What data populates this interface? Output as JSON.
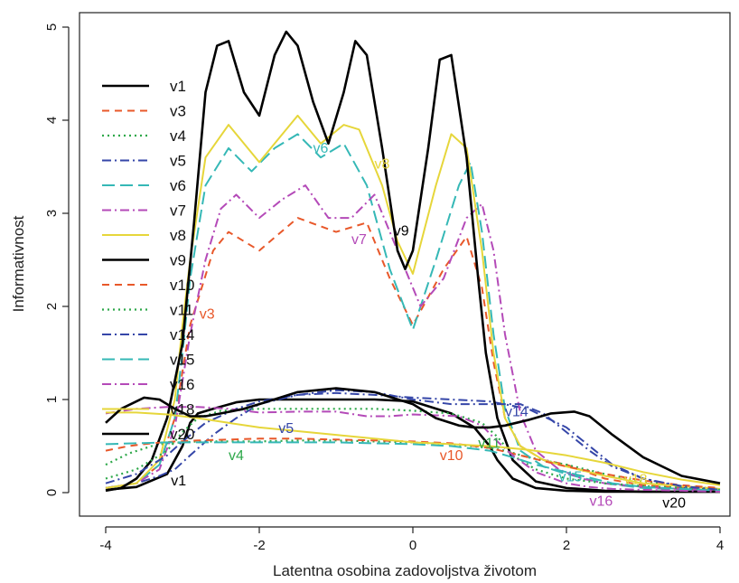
{
  "chart_data": {
    "type": "line",
    "xlabel": "Latentna osobina zadovoljstva životom",
    "ylabel": "Informativnost",
    "xlim": [
      -4,
      4
    ],
    "ylim": [
      0,
      5
    ],
    "x_ticks": [
      "-4",
      "-2",
      "0",
      "2",
      "4"
    ],
    "y_ticks": [
      "0",
      "1",
      "2",
      "3",
      "4",
      "5"
    ],
    "legend_position": "top-left",
    "series": [
      {
        "name": "v1",
        "color": "#000000",
        "dash": "solid",
        "width": 2.6,
        "x": [
          -4,
          -3.6,
          -3.2,
          -3.0,
          -2.9,
          -2.8,
          -2.6,
          -2.3,
          -2.0,
          -1.5,
          -1.0,
          -0.5,
          0.0,
          0.5,
          0.8,
          1.0,
          1.1,
          1.3,
          1.6,
          2.0,
          2.5,
          3.0,
          3.5,
          4.0
        ],
        "y": [
          0.03,
          0.06,
          0.2,
          0.5,
          0.75,
          0.85,
          0.9,
          0.97,
          1.0,
          1.0,
          1.0,
          1.0,
          0.98,
          0.85,
          0.7,
          0.5,
          0.35,
          0.15,
          0.05,
          0.02,
          0.01,
          0.01,
          0.01,
          0.01
        ]
      },
      {
        "name": "v3",
        "color": "#e8582a",
        "dash": "8,6",
        "width": 2,
        "x": [
          -4,
          -3.6,
          -3.3,
          -3.1,
          -3.0,
          -2.9,
          -2.6,
          -2.4,
          -2.0,
          -1.5,
          -1.0,
          -0.6,
          -0.3,
          0.0,
          0.4,
          0.7,
          0.9,
          1.05,
          1.2,
          1.4,
          1.7,
          2.0,
          2.5,
          3.0,
          4.0
        ],
        "y": [
          0.05,
          0.1,
          0.3,
          0.8,
          1.3,
          1.8,
          2.6,
          2.8,
          2.6,
          2.95,
          2.8,
          2.9,
          2.3,
          1.8,
          2.4,
          2.75,
          2.2,
          1.4,
          0.8,
          0.5,
          0.35,
          0.3,
          0.15,
          0.08,
          0.02
        ]
      },
      {
        "name": "v4",
        "color": "#2ea84a",
        "dash": "2,4",
        "width": 2.2,
        "x": [
          -4,
          -3.7,
          -3.4,
          -3.2,
          -2.8,
          -2.4,
          -2.0,
          -1.5,
          -1.0,
          -0.5,
          0.0,
          0.5,
          1.0,
          1.2,
          1.5,
          2.0,
          2.5,
          3.0,
          3.5,
          4.0
        ],
        "y": [
          0.3,
          0.42,
          0.5,
          0.53,
          0.55,
          0.55,
          0.55,
          0.56,
          0.56,
          0.55,
          0.54,
          0.52,
          0.48,
          0.45,
          0.38,
          0.3,
          0.2,
          0.12,
          0.07,
          0.04
        ]
      },
      {
        "name": "v5",
        "color": "#3546a8",
        "dash": "10,4,2,4",
        "width": 2,
        "x": [
          -4,
          -3.6,
          -3.3,
          -3.1,
          -2.9,
          -2.6,
          -2.3,
          -2.0,
          -1.5,
          -1.0,
          -0.5,
          0.0,
          0.5,
          1.0,
          1.5,
          2.0,
          2.3,
          2.6,
          3.0,
          3.5,
          4.0
        ],
        "y": [
          0.05,
          0.1,
          0.18,
          0.25,
          0.4,
          0.62,
          0.8,
          0.95,
          1.05,
          1.07,
          1.05,
          1.02,
          1.0,
          0.98,
          0.9,
          0.7,
          0.5,
          0.3,
          0.15,
          0.06,
          0.03
        ]
      },
      {
        "name": "v6",
        "color": "#35b8b6",
        "dash": "14,6",
        "width": 2,
        "x": [
          -4,
          -3.6,
          -3.3,
          -3.1,
          -3.0,
          -2.9,
          -2.7,
          -2.4,
          -2.1,
          -1.8,
          -1.5,
          -1.2,
          -0.9,
          -0.6,
          -0.3,
          0.0,
          0.3,
          0.6,
          0.75,
          0.9,
          1.05,
          1.2,
          1.4,
          1.7,
          2.0,
          2.5,
          3.0,
          4.0
        ],
        "y": [
          0.05,
          0.1,
          0.3,
          0.8,
          1.5,
          2.3,
          3.3,
          3.7,
          3.45,
          3.7,
          3.85,
          3.6,
          3.75,
          3.3,
          2.4,
          1.75,
          2.5,
          3.3,
          3.55,
          2.8,
          1.7,
          0.9,
          0.45,
          0.28,
          0.2,
          0.1,
          0.05,
          0.02
        ]
      },
      {
        "name": "v7",
        "color": "#b44ab8",
        "dash": "10,4,2,4",
        "width": 2,
        "x": [
          -4,
          -3.6,
          -3.3,
          -3.1,
          -3.0,
          -2.9,
          -2.7,
          -2.5,
          -2.3,
          -2.0,
          -1.7,
          -1.4,
          -1.1,
          -0.8,
          -0.5,
          -0.2,
          0.1,
          0.4,
          0.7,
          0.9,
          1.05,
          1.2,
          1.4,
          1.6,
          1.9,
          2.2,
          2.5,
          3.0,
          3.5,
          4.0
        ],
        "y": [
          0.05,
          0.1,
          0.25,
          0.7,
          1.2,
          1.7,
          2.5,
          3.05,
          3.2,
          2.95,
          3.15,
          3.3,
          2.95,
          2.95,
          3.2,
          2.6,
          2.0,
          2.3,
          2.95,
          3.1,
          2.6,
          1.7,
          0.85,
          0.45,
          0.25,
          0.15,
          0.1,
          0.06,
          0.04,
          0.02
        ]
      },
      {
        "name": "v8",
        "color": "#e6d63a",
        "dash": "solid",
        "width": 2,
        "x": [
          -4,
          -3.6,
          -3.3,
          -3.1,
          -3.0,
          -2.9,
          -2.7,
          -2.4,
          -2.0,
          -1.8,
          -1.5,
          -1.2,
          -0.9,
          -0.7,
          -0.4,
          -0.2,
          0.0,
          0.3,
          0.5,
          0.7,
          0.9,
          1.05,
          1.2,
          1.4,
          1.7,
          2.0,
          2.5,
          3.0,
          4.0
        ],
        "y": [
          0.05,
          0.1,
          0.35,
          1.0,
          1.8,
          2.5,
          3.6,
          3.95,
          3.55,
          3.75,
          4.05,
          3.75,
          3.95,
          3.9,
          3.3,
          2.7,
          2.35,
          3.3,
          3.85,
          3.7,
          2.6,
          1.5,
          0.8,
          0.5,
          0.35,
          0.28,
          0.18,
          0.1,
          0.04
        ]
      },
      {
        "name": "v9",
        "color": "#000000",
        "dash": "solid",
        "width": 2.6,
        "x": [
          -4,
          -3.8,
          -3.6,
          -3.4,
          -3.2,
          -3.0,
          -2.85,
          -2.7,
          -2.55,
          -2.4,
          -2.2,
          -2.0,
          -1.8,
          -1.65,
          -1.5,
          -1.3,
          -1.1,
          -0.9,
          -0.75,
          -0.6,
          -0.4,
          -0.2,
          -0.1,
          0.0,
          0.2,
          0.35,
          0.5,
          0.7,
          0.85,
          0.95,
          1.1,
          1.3,
          1.6,
          2.0,
          2.5,
          3.0,
          4.0
        ],
        "y": [
          0.02,
          0.05,
          0.15,
          0.35,
          0.8,
          1.6,
          2.9,
          4.3,
          4.8,
          4.85,
          4.3,
          4.05,
          4.7,
          4.95,
          4.8,
          4.2,
          3.75,
          4.3,
          4.85,
          4.7,
          3.7,
          2.6,
          2.4,
          2.6,
          3.7,
          4.65,
          4.7,
          3.6,
          2.3,
          1.5,
          0.8,
          0.35,
          0.12,
          0.05,
          0.02,
          0.01,
          0.01
        ]
      },
      {
        "name": "v10",
        "color": "#e8582a",
        "dash": "8,6",
        "width": 2,
        "x": [
          -4,
          -3.7,
          -3.4,
          -3.1,
          -2.8,
          -2.4,
          -2.0,
          -1.5,
          -1.0,
          -0.5,
          0.0,
          0.5,
          1.0,
          1.2,
          1.5,
          2.0,
          2.5,
          3.0,
          3.5,
          4.0
        ],
        "y": [
          0.45,
          0.5,
          0.53,
          0.55,
          0.56,
          0.57,
          0.58,
          0.58,
          0.57,
          0.56,
          0.55,
          0.53,
          0.48,
          0.44,
          0.38,
          0.28,
          0.2,
          0.13,
          0.08,
          0.05
        ]
      },
      {
        "name": "v11",
        "color": "#2ea84a",
        "dash": "2,4",
        "width": 2.2,
        "x": [
          -4,
          -3.6,
          -3.2,
          -3.0,
          -2.8,
          -2.5,
          -2.0,
          -1.5,
          -1.0,
          -0.5,
          0.0,
          0.5,
          0.9,
          1.1,
          1.3,
          1.6,
          2.0,
          2.5,
          3.0,
          3.5,
          4.0
        ],
        "y": [
          0.15,
          0.25,
          0.45,
          0.65,
          0.8,
          0.88,
          0.9,
          0.9,
          0.9,
          0.9,
          0.88,
          0.85,
          0.75,
          0.6,
          0.4,
          0.25,
          0.15,
          0.1,
          0.07,
          0.05,
          0.03
        ]
      },
      {
        "name": "v14",
        "color": "#3546a8",
        "dash": "10,4,2,4",
        "width": 2,
        "x": [
          -4,
          -3.6,
          -3.2,
          -3.0,
          -2.7,
          -2.3,
          -2.0,
          -1.5,
          -1.0,
          -0.5,
          0.0,
          0.5,
          1.0,
          1.4,
          1.7,
          2.0,
          2.3,
          2.6,
          3.0,
          3.5,
          4.0
        ],
        "y": [
          0.1,
          0.2,
          0.4,
          0.55,
          0.75,
          0.9,
          0.98,
          1.05,
          1.1,
          1.08,
          1.0,
          0.95,
          0.95,
          0.95,
          0.85,
          0.65,
          0.45,
          0.28,
          0.15,
          0.07,
          0.03
        ]
      },
      {
        "name": "v15",
        "color": "#35b8b6",
        "dash": "14,6",
        "width": 2,
        "x": [
          -4,
          -3.6,
          -3.2,
          -2.8,
          -2.4,
          -2.0,
          -1.5,
          -1.0,
          -0.5,
          0.0,
          0.5,
          1.0,
          1.3,
          1.6,
          2.0,
          2.3,
          2.6,
          3.0,
          3.5,
          4.0
        ],
        "y": [
          0.52,
          0.53,
          0.54,
          0.54,
          0.54,
          0.54,
          0.54,
          0.54,
          0.53,
          0.52,
          0.5,
          0.45,
          0.38,
          0.3,
          0.22,
          0.16,
          0.1,
          0.06,
          0.04,
          0.02
        ]
      },
      {
        "name": "v16",
        "color": "#b44ab8",
        "dash": "10,4,2,4",
        "width": 2,
        "x": [
          -4,
          -3.6,
          -3.2,
          -2.8,
          -2.4,
          -2.0,
          -1.5,
          -1.0,
          -0.6,
          -0.3,
          0.0,
          0.3,
          0.6,
          0.9,
          1.1,
          1.3,
          1.6,
          2.0,
          2.3,
          2.6,
          3.0,
          3.5,
          4.0
        ],
        "y": [
          0.85,
          0.9,
          0.92,
          0.92,
          0.9,
          0.86,
          0.87,
          0.87,
          0.82,
          0.82,
          0.84,
          0.83,
          0.82,
          0.72,
          0.55,
          0.4,
          0.22,
          0.1,
          0.06,
          0.04,
          0.03,
          0.02,
          0.01
        ]
      },
      {
        "name": "v18",
        "color": "#e6d63a",
        "dash": "solid",
        "width": 2,
        "x": [
          -4,
          -3.6,
          -3.2,
          -2.8,
          -2.4,
          -2.0,
          -1.5,
          -1.0,
          -0.5,
          0.0,
          0.5,
          1.0,
          1.5,
          2.0,
          2.5,
          3.0,
          3.5,
          4.0
        ],
        "y": [
          0.86,
          0.86,
          0.84,
          0.8,
          0.75,
          0.7,
          0.66,
          0.62,
          0.58,
          0.54,
          0.52,
          0.5,
          0.46,
          0.4,
          0.32,
          0.22,
          0.14,
          0.08
        ]
      },
      {
        "name": "v20",
        "color": "#000000",
        "dash": "solid",
        "width": 2.6,
        "x": [
          -4,
          -3.8,
          -3.5,
          -3.3,
          -3.1,
          -2.9,
          -2.7,
          -2.5,
          -2.2,
          -2.0,
          -1.5,
          -1.0,
          -0.5,
          0.0,
          0.3,
          0.6,
          0.8,
          1.0,
          1.2,
          1.5,
          1.8,
          2.1,
          2.3,
          2.6,
          3.0,
          3.5,
          4.0
        ],
        "y": [
          0.75,
          0.9,
          1.02,
          1.0,
          0.9,
          0.82,
          0.82,
          0.85,
          0.9,
          0.95,
          1.08,
          1.12,
          1.08,
          0.95,
          0.8,
          0.72,
          0.7,
          0.7,
          0.72,
          0.78,
          0.85,
          0.87,
          0.82,
          0.62,
          0.38,
          0.18,
          0.1
        ]
      }
    ],
    "annotations": [
      {
        "text": "v1",
        "x": -3.15,
        "y": 0.08,
        "color": "#000000"
      },
      {
        "text": "v3",
        "x": -2.78,
        "y": 1.87,
        "color": "#e8582a"
      },
      {
        "text": "v4",
        "x": -2.4,
        "y": 0.35,
        "color": "#2ea84a"
      },
      {
        "text": "v5",
        "x": -1.75,
        "y": 0.64,
        "color": "#3546a8"
      },
      {
        "text": "v6",
        "x": -1.3,
        "y": 3.65,
        "color": "#35b8b6"
      },
      {
        "text": "v7",
        "x": -0.8,
        "y": 2.67,
        "color": "#b44ab8"
      },
      {
        "text": "v8",
        "x": -0.5,
        "y": 3.48,
        "color": "#e6d63a"
      },
      {
        "text": "v9",
        "x": -0.25,
        "y": 2.76,
        "color": "#000000"
      },
      {
        "text": "v10",
        "x": 0.35,
        "y": 0.35,
        "color": "#e8582a"
      },
      {
        "text": "v11",
        "x": 0.85,
        "y": 0.48,
        "color": "#2ea84a"
      },
      {
        "text": "v14",
        "x": 1.2,
        "y": 0.82,
        "color": "#3546a8"
      },
      {
        "text": "v15",
        "x": 1.9,
        "y": 0.12,
        "color": "#35b8b6"
      },
      {
        "text": "v16",
        "x": 2.3,
        "y": -0.14,
        "color": "#b44ab8"
      },
      {
        "text": "v18",
        "x": 2.75,
        "y": 0.09,
        "color": "#e6d63a"
      },
      {
        "text": "v20",
        "x": 3.25,
        "y": -0.16,
        "color": "#000000"
      }
    ]
  }
}
